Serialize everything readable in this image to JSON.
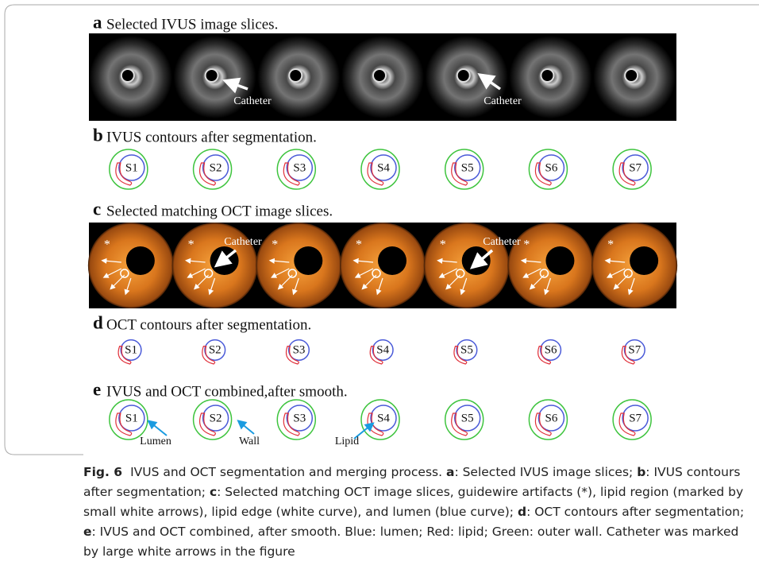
{
  "panels": [
    {
      "letter": "a",
      "title": "Selected IVUS image slices.",
      "annotations": [
        "Catheter",
        "Catheter"
      ]
    },
    {
      "letter": "b",
      "title": "IVUS contours after segmentation.",
      "slices": [
        "S1",
        "S2",
        "S3",
        "S4",
        "S5",
        "S6",
        "S7"
      ]
    },
    {
      "letter": "c",
      "title": "Selected matching OCT image slices.",
      "annotations": [
        "Catheter",
        "Catheter"
      ],
      "artifact_marker": "*"
    },
    {
      "letter": "d",
      "title": "OCT contours after segmentation.",
      "slices": [
        "S1",
        "S2",
        "S3",
        "S4",
        "S5",
        "S6",
        "S7"
      ]
    },
    {
      "letter": "e",
      "title": "IVUS and OCT combined,after smooth.",
      "slices": [
        "S1",
        "S2",
        "S3",
        "S4",
        "S5",
        "S6",
        "S7"
      ],
      "annotations": [
        "Lumen",
        "Wall",
        "Lipid"
      ]
    }
  ],
  "caption": {
    "label": "Fig. 6",
    "text": "IVUS and OCT segmentation and merging process.",
    "items": [
      {
        "key": "a",
        "text": ": Selected IVUS image slices;"
      },
      {
        "key": "b",
        "text": ": IVUS contours after segmentation;"
      },
      {
        "key": "c",
        "text": ": Selected matching OCT image slices, guidewire artifacts (*), lipid region (marked by small white arrows), lipid edge (white curve), and lumen (blue curve);"
      },
      {
        "key": "d",
        "text": ": OCT contours after segmentation;"
      },
      {
        "key": "e",
        "text": ": IVUS and OCT combined, after smooth. Blue: lumen; Red: lipid; Green: outer wall. Catheter was marked by large white arrows in the figure"
      }
    ]
  }
}
